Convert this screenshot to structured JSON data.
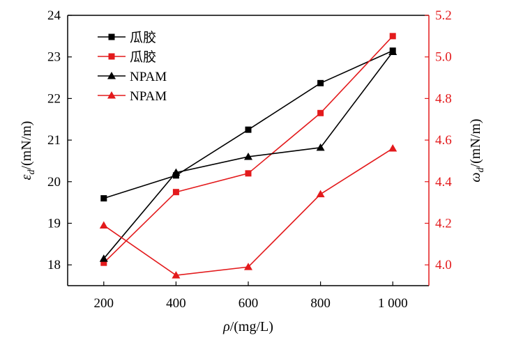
{
  "chart_data": {
    "type": "line",
    "x": [
      200,
      400,
      600,
      800,
      1000
    ],
    "x_tick_labels": [
      "200",
      "400",
      "600",
      "800",
      "1 000"
    ],
    "xlabel": "ρ/(mg/L)",
    "ylabel_left": "εd/(mN/m)",
    "ylabel_right": "ωd/(mN/m)",
    "ylim_left": [
      17.5,
      24
    ],
    "ylim_right": [
      3.9,
      5.2
    ],
    "y_left_ticks": [
      "18",
      "19",
      "20",
      "21",
      "22",
      "23",
      "24"
    ],
    "y_right_ticks": [
      "4.0",
      "4.2",
      "4.4",
      "4.6",
      "4.8",
      "5.0",
      "5.2"
    ],
    "legend_position": "top-left",
    "colors": {
      "left_axis": "#000000",
      "right_axis": "#e31a1c"
    },
    "series": [
      {
        "name": "瓜胶",
        "axis": "left",
        "marker": "square",
        "color": "#000000",
        "values": [
          19.6,
          20.15,
          21.25,
          22.37,
          23.15
        ]
      },
      {
        "name": "瓜胶",
        "axis": "right",
        "marker": "square",
        "color": "#e31a1c",
        "values": [
          4.01,
          4.35,
          4.44,
          4.73,
          5.1
        ]
      },
      {
        "name": "NPAM",
        "axis": "left",
        "marker": "triangle",
        "color": "#000000",
        "values": [
          18.15,
          20.22,
          20.6,
          20.82,
          23.12
        ]
      },
      {
        "name": "NPAM",
        "axis": "right",
        "marker": "triangle",
        "color": "#e31a1c",
        "values": [
          4.19,
          3.95,
          3.99,
          4.34,
          4.56
        ]
      }
    ]
  }
}
